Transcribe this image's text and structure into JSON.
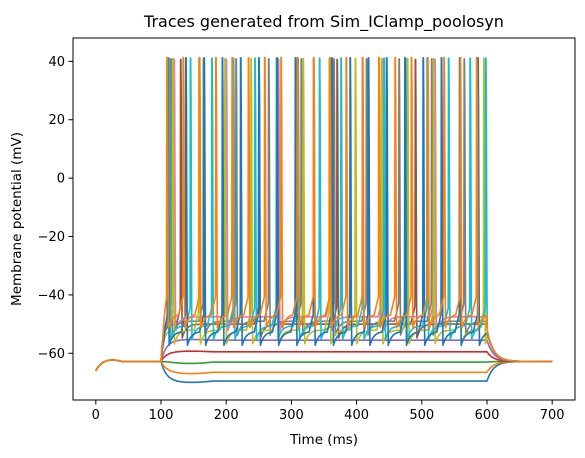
{
  "chart_data": {
    "type": "line",
    "title": "Traces generated from Sim_IClamp_poolosyn",
    "xlabel": "Time (ms)",
    "ylabel": "Membrane potential (mV)",
    "xlim": [
      -35,
      735
    ],
    "ylim": [
      -76,
      48
    ],
    "xticks": [
      0,
      100,
      200,
      300,
      400,
      500,
      600,
      700
    ],
    "yticks": [
      -60,
      -40,
      -20,
      0,
      20,
      40
    ],
    "grid": false,
    "legend": "none",
    "stimulus_window_ms": [
      100,
      600
    ],
    "spike_peak_mv": 41,
    "series": [
      {
        "color": "#1f77b4",
        "rest_mv": -62.8,
        "plateau_mv": -69.5,
        "spike_times_ms": []
      },
      {
        "color": "#ff7f0e",
        "rest_mv": -62.8,
        "plateau_mv": -66.5,
        "spike_times_ms": []
      },
      {
        "color": "#2ca02c",
        "rest_mv": -62.8,
        "plateau_mv": -63.0,
        "spike_times_ms": []
      },
      {
        "color": "#d62728",
        "rest_mv": -62.8,
        "plateau_mv": -59.5,
        "spike_times_ms": []
      },
      {
        "color": "#9467bd",
        "rest_mv": -62.8,
        "plateau_mv": -55.5,
        "spike_times_ms": []
      },
      {
        "color": "#8c564b",
        "rest_mv": -62.8,
        "plateau_mv": -50.0,
        "spike_times_ms": [
          130,
          250,
          370,
          490
        ]
      },
      {
        "color": "#e377c2",
        "rest_mv": -62.8,
        "plateau_mv": -47.5,
        "spike_times_ms": [
          120,
          200,
          280,
          360,
          440,
          520
        ]
      },
      {
        "color": "#7f7f7f",
        "rest_mv": -62.8,
        "plateau_mv": -49.0,
        "spike_times_ms": [
          115,
          165,
          215,
          265,
          315,
          365,
          415,
          465,
          515,
          565
        ]
      },
      {
        "color": "#bcbd22",
        "rest_mv": -62.8,
        "plateau_mv": -52.0,
        "spike_times_ms": [
          118,
          158,
          198,
          238,
          278,
          318,
          358,
          398,
          438,
          478,
          518,
          558,
          595
        ]
      },
      {
        "color": "#17becf",
        "rest_mv": -62.8,
        "plateau_mv": -50.5,
        "spike_times_ms": [
          112,
          145,
          178,
          211,
          244,
          277,
          310,
          343,
          376,
          409,
          442,
          475,
          508,
          541,
          574,
          598
        ]
      },
      {
        "color": "#1f77b4",
        "rest_mv": -62.8,
        "plateau_mv": -52.5,
        "spike_times_ms": [
          110,
          138,
          166,
          194,
          222,
          250,
          278,
          306,
          334,
          362,
          390,
          418,
          446,
          474,
          502,
          530,
          558,
          586
        ]
      },
      {
        "color": "#ff7f0e",
        "rest_mv": -62.8,
        "plateau_mv": -46.5,
        "spike_times_ms": [
          109,
          134,
          159,
          184,
          209,
          234,
          259,
          284,
          309,
          334,
          359,
          384,
          409,
          434,
          459,
          484,
          509,
          534,
          559,
          584
        ]
      }
    ]
  }
}
